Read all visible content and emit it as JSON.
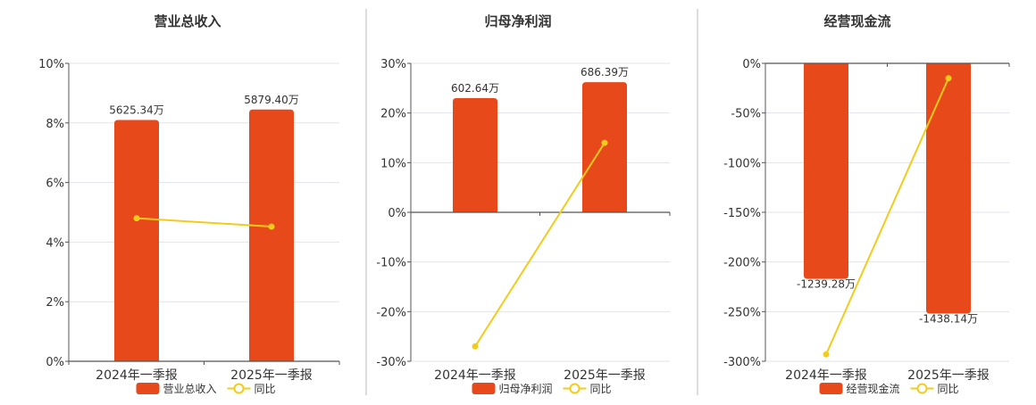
{
  "colors": {
    "bar": "#E8491A",
    "line": "#F2CC1B",
    "grid": "#E3E3EB",
    "axis": "#555555",
    "divider": "#BBBBBB",
    "text": "#333333"
  },
  "legend_line_label": "同比",
  "chart_data": [
    {
      "type": "bar",
      "title": "营业总收入",
      "categories": [
        "2024年一季报",
        "2025年一季报"
      ],
      "ylim": [
        0,
        10
      ],
      "yticks": [
        0,
        2,
        4,
        6,
        8,
        10
      ],
      "ytick_labels": [
        "0%",
        "2%",
        "4%",
        "6%",
        "8%",
        "10%"
      ],
      "bar_values": [
        8.1,
        8.45
      ],
      "bar_labels": [
        "5625.34万",
        "5879.40万"
      ],
      "line_values": [
        4.8,
        4.52
      ],
      "series": [
        {
          "name": "营业总收入",
          "kind": "bar"
        },
        {
          "name": "同比",
          "kind": "line"
        }
      ]
    },
    {
      "type": "bar",
      "title": "归母净利润",
      "categories": [
        "2024年一季报",
        "2025年一季报"
      ],
      "ylim": [
        -30,
        30
      ],
      "yticks": [
        -30,
        -20,
        -10,
        0,
        10,
        20,
        30
      ],
      "ytick_labels": [
        "-30%",
        "-20%",
        "-10%",
        "0%",
        "10%",
        "20%",
        "30%"
      ],
      "bar_values": [
        23,
        26.2
      ],
      "bar_labels": [
        "602.64万",
        "686.39万"
      ],
      "line_values": [
        -27,
        14
      ],
      "series": [
        {
          "name": "归母净利润",
          "kind": "bar"
        },
        {
          "name": "同比",
          "kind": "line"
        }
      ]
    },
    {
      "type": "bar",
      "title": "经营现金流",
      "categories": [
        "2024年一季报",
        "2025年一季报"
      ],
      "ylim": [
        -300,
        0
      ],
      "yticks": [
        -300,
        -250,
        -200,
        -150,
        -100,
        -50,
        0
      ],
      "ytick_labels": [
        "-300%",
        "-250%",
        "-200%",
        "-150%",
        "-100%",
        "-50%",
        "0%"
      ],
      "bar_values": [
        -217,
        -252
      ],
      "bar_labels": [
        "-1239.28万",
        "-1438.14万"
      ],
      "line_values": [
        -293,
        -15
      ],
      "series": [
        {
          "name": "经营现金流",
          "kind": "bar"
        },
        {
          "name": "同比",
          "kind": "line"
        }
      ]
    }
  ]
}
